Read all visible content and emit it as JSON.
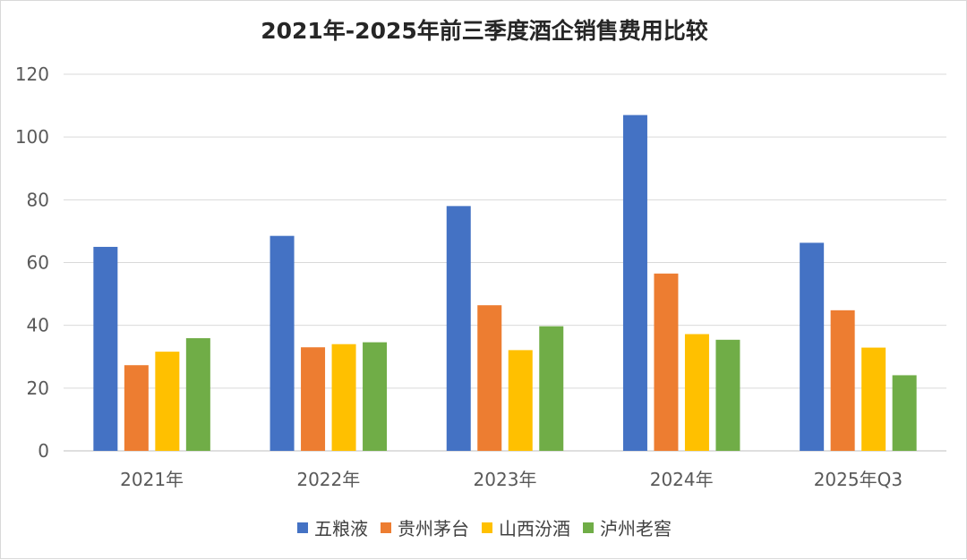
{
  "chart_data": {
    "type": "bar",
    "title": "2021年-2025年前三季度酒企销售费用比较",
    "categories": [
      "2021年",
      "2022年",
      "2023年",
      "2024年",
      "2025年Q3"
    ],
    "series": [
      {
        "name": "五粮液",
        "color": "#4472C4",
        "values": [
          65.0,
          68.5,
          78.0,
          107.0,
          66.3
        ]
      },
      {
        "name": "贵州茅台",
        "color": "#ED7D31",
        "values": [
          27.3,
          33.0,
          46.4,
          56.5,
          44.8
        ]
      },
      {
        "name": "山西汾酒",
        "color": "#FFC000",
        "values": [
          31.6,
          34.0,
          32.1,
          37.2,
          32.9
        ]
      },
      {
        "name": "泸州老窖",
        "color": "#70AD47",
        "values": [
          35.9,
          34.6,
          39.7,
          35.4,
          24.1
        ]
      }
    ],
    "ylim": [
      0,
      120
    ],
    "yticks": [
      "0",
      "20",
      "40",
      "60",
      "80",
      "100",
      "120"
    ],
    "grid": true,
    "legend_position": "bottom"
  }
}
